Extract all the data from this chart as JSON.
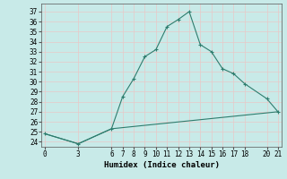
{
  "title": "",
  "xlabel": "Humidex (Indice chaleur)",
  "ylabel": "",
  "bg_color": "#c8eae8",
  "line_color": "#2e7d6e",
  "grid_color": "#e8c8c8",
  "line1_x": [
    0,
    3,
    6,
    7,
    8,
    9,
    10,
    11,
    12,
    13,
    14,
    15,
    16,
    17,
    18,
    20,
    21
  ],
  "line1_y": [
    24.8,
    23.8,
    25.3,
    28.5,
    30.3,
    32.5,
    33.2,
    35.5,
    36.2,
    37.0,
    33.7,
    33.0,
    31.3,
    30.8,
    29.8,
    28.3,
    27.0
  ],
  "line2_x": [
    0,
    3,
    6,
    21
  ],
  "line2_y": [
    24.8,
    23.8,
    25.3,
    27.0
  ],
  "xlim": [
    -0.3,
    21.3
  ],
  "ylim": [
    23.5,
    37.8
  ],
  "xticks": [
    0,
    3,
    6,
    7,
    8,
    9,
    10,
    11,
    12,
    13,
    14,
    15,
    16,
    17,
    18,
    20,
    21
  ],
  "yticks": [
    24,
    25,
    26,
    27,
    28,
    29,
    30,
    31,
    32,
    33,
    34,
    35,
    36,
    37
  ],
  "marker": "+"
}
